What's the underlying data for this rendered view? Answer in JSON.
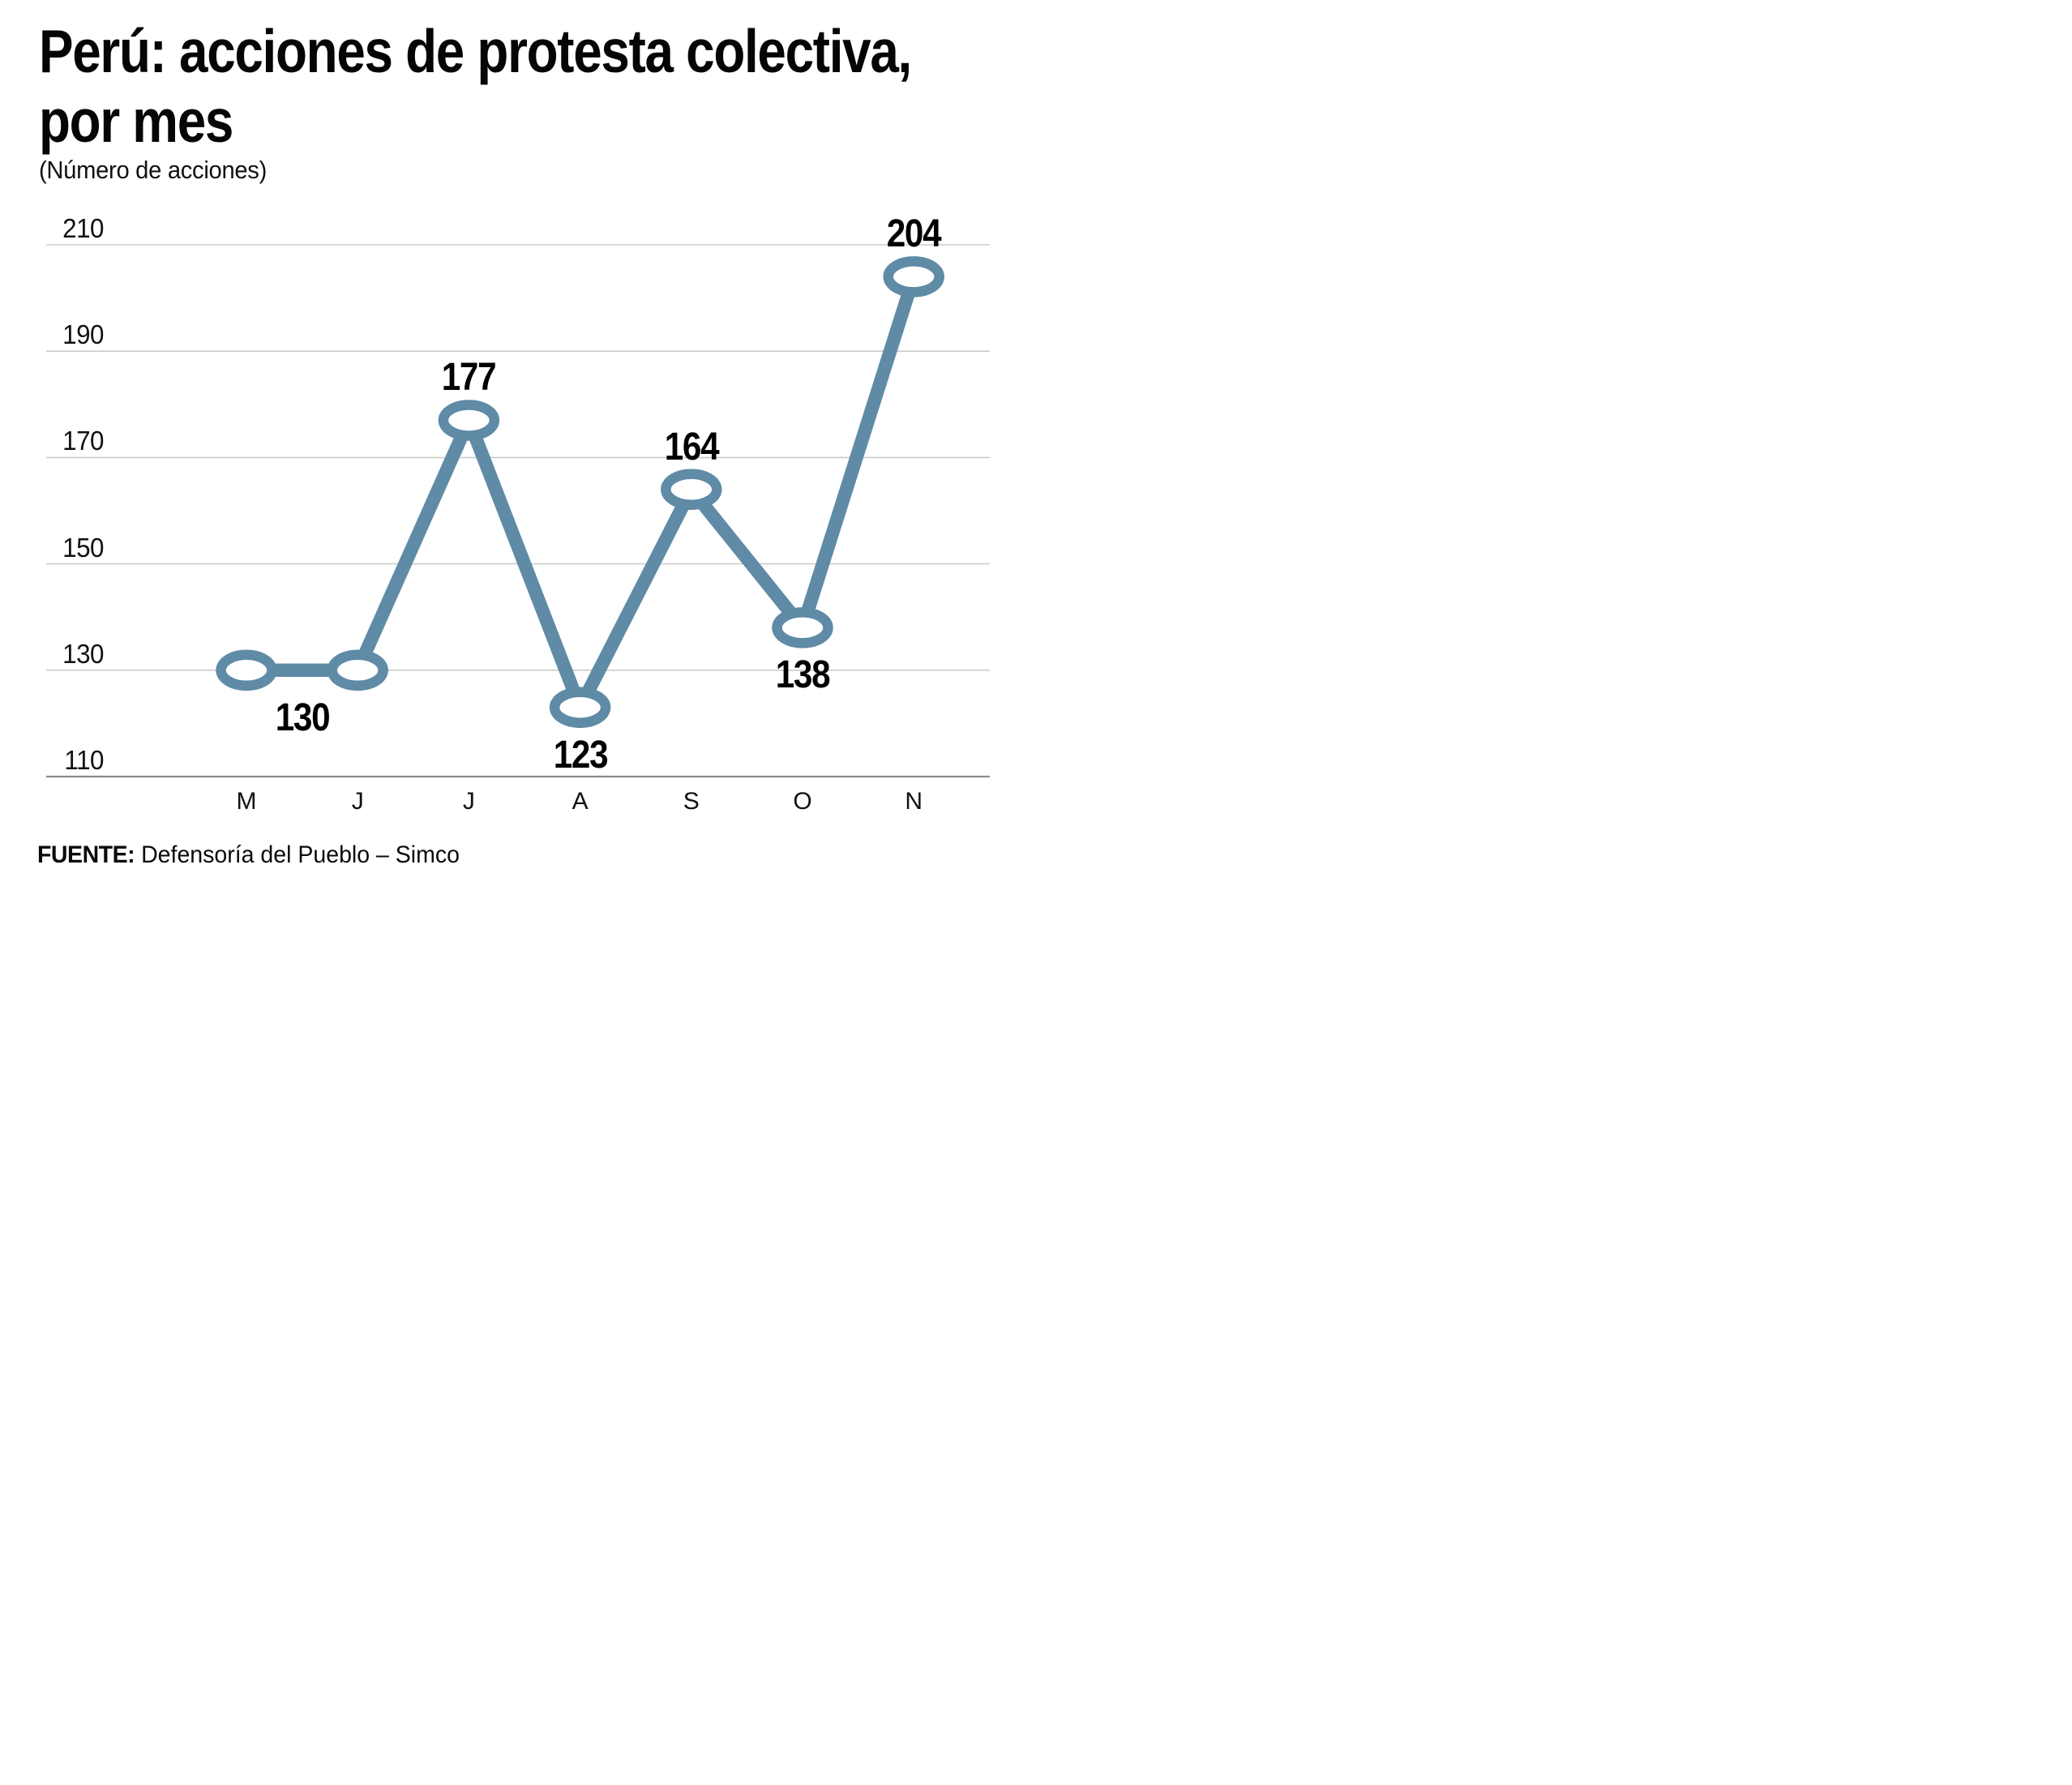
{
  "header": {
    "title_line1": "Perú: acciones de protesta colectiva,",
    "title_line2": "por mes",
    "subtitle": "(Número de acciones)"
  },
  "source": {
    "label": "FUENTE:",
    "text": " Defensoría del Pueblo – Simco"
  },
  "chart_data": {
    "type": "line",
    "title": "Perú: acciones de protesta colectiva, por mes",
    "subtitle": "(Número de acciones)",
    "xlabel": "",
    "ylabel": "Número de acciones",
    "categories": [
      "M",
      "J",
      "J",
      "A",
      "S",
      "O",
      "N"
    ],
    "values": [
      130,
      130,
      177,
      123,
      164,
      138,
      204
    ],
    "data_labels": [
      {
        "text": "130",
        "anchor": "mid01",
        "placement": "below"
      },
      {
        "text": "177",
        "index": 2,
        "placement": "above"
      },
      {
        "text": "123",
        "index": 3,
        "placement": "below"
      },
      {
        "text": "164",
        "index": 4,
        "placement": "above"
      },
      {
        "text": "138",
        "index": 5,
        "placement": "below"
      },
      {
        "text": "204",
        "index": 6,
        "placement": "above"
      }
    ],
    "yticks": [
      210,
      190,
      170,
      150,
      130,
      110
    ],
    "ylim": [
      110,
      210
    ],
    "grid": "horizontal-only",
    "legend": "none",
    "marker_style": "open-ellipse",
    "line_color": "#5F8BA6",
    "grid_color": "#CBCBCB",
    "axis_line_color": "#8C8C8C",
    "label_color": "#000000"
  }
}
